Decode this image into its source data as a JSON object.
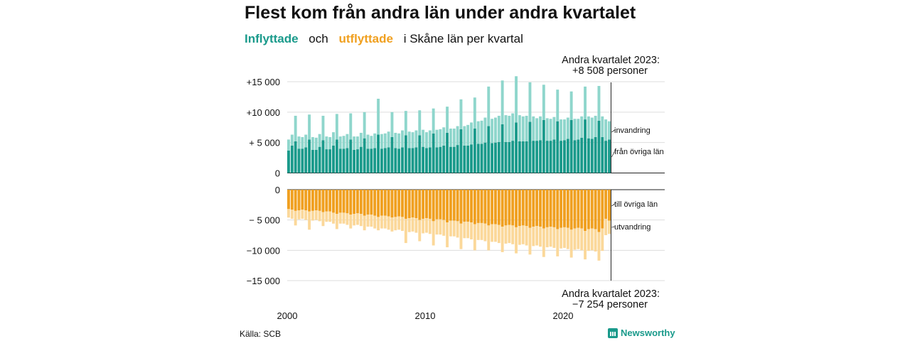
{
  "title": "Flest kom från andra län under andra kvartalet",
  "subtitle": {
    "inflyttade": "Inflyttade",
    "och": "och",
    "utflyttade": "utflyttade",
    "rest": "i Skåne län per kvartal"
  },
  "source": "Källa: SCB",
  "brand": "Newsworthy",
  "colors": {
    "in_dark": "#1a9a8b",
    "in_light": "#8fd6cc",
    "out_dark": "#f0a020",
    "out_light": "#fbd89a",
    "grid": "#dddddd"
  },
  "annotations": {
    "top_line1": "Andra kvartalet 2023:",
    "top_line2": "+8 508 personer",
    "bottom_line1": "Andra kvartalet 2023:",
    "bottom_line2": "−7 254 personer"
  },
  "series_labels": {
    "invandring": "invandring",
    "fran_ovriga_lan": "från övriga län",
    "till_ovriga_lan": "till övriga län",
    "utvandring": "utvandring"
  },
  "chart_data": {
    "type": "bar",
    "x_start": "2000 Q1",
    "x_end": "2023 Q2",
    "x_ticks": [
      "2000",
      "2010",
      "2020"
    ],
    "y_ticks_top": [
      "+15 000",
      "+10 000",
      "+ 5 000",
      "0"
    ],
    "y_ticks_bottom": [
      "0",
      "− 5 000",
      "−10 000",
      "−15 000"
    ],
    "ylim": [
      -15000,
      15000
    ],
    "series": [
      {
        "name": "från övriga län",
        "values": [
          3700,
          4500,
          5200,
          4000,
          4000,
          4200,
          5500,
          3800,
          3800,
          4300,
          5400,
          3900,
          3900,
          4500,
          5500,
          4000,
          4000,
          4100,
          5500,
          3800,
          3900,
          4300,
          5700,
          4000,
          4000,
          4100,
          6300,
          4000,
          4100,
          4200,
          5900,
          4100,
          4000,
          4200,
          6200,
          4100,
          4100,
          4200,
          6200,
          4300,
          4100,
          4200,
          6500,
          4200,
          4300,
          4500,
          6600,
          4300,
          4300,
          4600,
          7200,
          4500,
          4500,
          4700,
          7300,
          4800,
          4800,
          5000,
          7700,
          4900,
          5000,
          5100,
          8000,
          5100,
          5100,
          5300,
          8300,
          5200,
          5200,
          5200,
          8400,
          5300,
          5300,
          5400,
          8700,
          5300,
          5300,
          5500,
          8500,
          5300,
          5400,
          5600,
          8700,
          5400,
          5500,
          5800,
          8800,
          5700,
          5600,
          5900,
          8600,
          5900,
          5300,
          5500
        ]
      },
      {
        "name": "invandring",
        "values": [
          1800,
          1800,
          4200,
          2000,
          1900,
          2100,
          4100,
          2100,
          2000,
          2100,
          4000,
          2100,
          2000,
          2200,
          4200,
          2000,
          2100,
          2300,
          4300,
          2200,
          2100,
          2300,
          4300,
          2300,
          2100,
          2400,
          5900,
          2400,
          2400,
          2600,
          4100,
          2500,
          2500,
          2800,
          4000,
          2700,
          2600,
          2800,
          4100,
          2800,
          2600,
          2800,
          4100,
          2900,
          2900,
          3000,
          4300,
          3000,
          3000,
          3100,
          4900,
          3200,
          3400,
          3600,
          5100,
          3700,
          3800,
          4100,
          6500,
          4000,
          4100,
          4300,
          7200,
          4400,
          4300,
          4500,
          7600,
          4300,
          4100,
          4200,
          6500,
          4000,
          3700,
          3900,
          5800,
          3700,
          3600,
          3700,
          5200,
          3500,
          3400,
          3500,
          4700,
          3500,
          3400,
          3500,
          5400,
          3600,
          3500,
          3500,
          5700,
          3400,
          3500,
          3000
        ]
      },
      {
        "name": "till övriga län",
        "values": [
          -3200,
          -3300,
          -3500,
          -3400,
          -3300,
          -3400,
          -3600,
          -3500,
          -3400,
          -3500,
          -3700,
          -3600,
          -3600,
          -3800,
          -4000,
          -3800,
          -3800,
          -3900,
          -4100,
          -4000,
          -3900,
          -4000,
          -4300,
          -4100,
          -4100,
          -4300,
          -4500,
          -4300,
          -4300,
          -4400,
          -4600,
          -4500,
          -4400,
          -4500,
          -4800,
          -4700,
          -4600,
          -4700,
          -5000,
          -4800,
          -4700,
          -4800,
          -5200,
          -4900,
          -4900,
          -5000,
          -5400,
          -5100,
          -5100,
          -5200,
          -5600,
          -5300,
          -5300,
          -5400,
          -5700,
          -5500,
          -5500,
          -5600,
          -5900,
          -5700,
          -5700,
          -5800,
          -6100,
          -5900,
          -5800,
          -5900,
          -6200,
          -6000,
          -5900,
          -6000,
          -6300,
          -6100,
          -6000,
          -6100,
          -6400,
          -6200,
          -6100,
          -6200,
          -6500,
          -6300,
          -6200,
          -6300,
          -6600,
          -6400,
          -6300,
          -6400,
          -6800,
          -6500,
          -6400,
          -6500,
          -7000,
          -6400,
          -4800,
          -5100
        ]
      },
      {
        "name": "utvandring",
        "values": [
          -1400,
          -1500,
          -2400,
          -1500,
          -1500,
          -1600,
          -3000,
          -1600,
          -1600,
          -1700,
          -2300,
          -1700,
          -1700,
          -1800,
          -2500,
          -1800,
          -1800,
          -1900,
          -2300,
          -1900,
          -1900,
          -2000,
          -2400,
          -2000,
          -2000,
          -2100,
          -2200,
          -2100,
          -2100,
          -2200,
          -2300,
          -2200,
          -2200,
          -2300,
          -4000,
          -2300,
          -2300,
          -2400,
          -3500,
          -2400,
          -2400,
          -2500,
          -4000,
          -2500,
          -2500,
          -2600,
          -4100,
          -2600,
          -2600,
          -2700,
          -4200,
          -2700,
          -2700,
          -2800,
          -4300,
          -2800,
          -2800,
          -2900,
          -4100,
          -2900,
          -2900,
          -3000,
          -4200,
          -3000,
          -3000,
          -3100,
          -4300,
          -3100,
          -3100,
          -3200,
          -4400,
          -3200,
          -3200,
          -3300,
          -4700,
          -3300,
          -3300,
          -3400,
          -4500,
          -3400,
          -3400,
          -3500,
          -4600,
          -3500,
          -3500,
          -3600,
          -4700,
          -3600,
          -3600,
          -3700,
          -4700,
          -3700,
          -2700,
          -2200
        ]
      }
    ],
    "grid": true,
    "legend": "direct labels right"
  }
}
